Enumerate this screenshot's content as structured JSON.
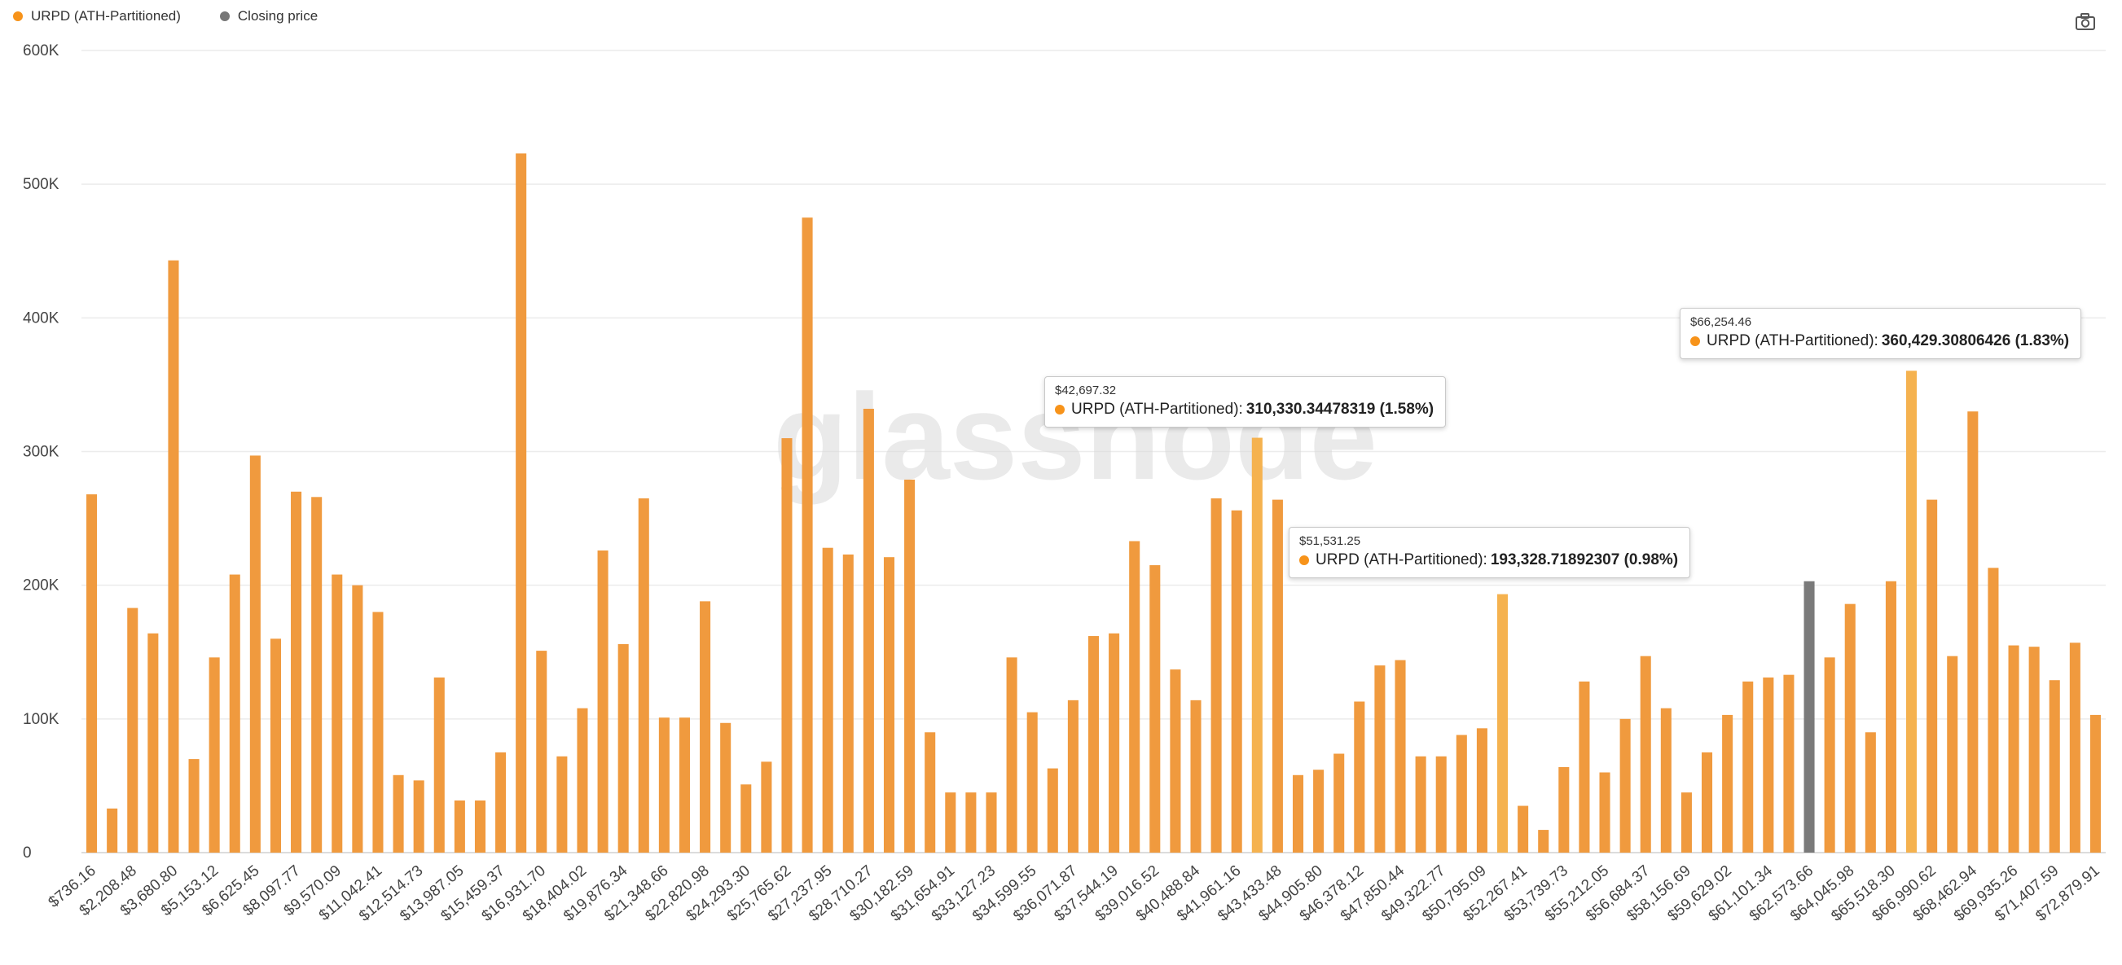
{
  "toolbar": {
    "camera_icon": "camera-icon"
  },
  "legend": [
    {
      "label": "URPD (ATH-Partitioned)",
      "color": "#F7931A"
    },
    {
      "label": "Closing price",
      "color": "#777777"
    }
  ],
  "watermark": "glassnode",
  "colors": {
    "bar": "#F09A3E",
    "highlight": "#F5B24F",
    "closing": "#7A7A7A",
    "grid": "#ececec",
    "text": "#444444"
  },
  "chart_data": {
    "type": "bar",
    "ylim": [
      0,
      600000
    ],
    "y_ticks": [
      {
        "value": 0,
        "label": "0"
      },
      {
        "value": 100000,
        "label": "100K"
      },
      {
        "value": 200000,
        "label": "200K"
      },
      {
        "value": 300000,
        "label": "300K"
      },
      {
        "value": 400000,
        "label": "400K"
      },
      {
        "value": 500000,
        "label": "500K"
      },
      {
        "value": 600000,
        "label": "600K"
      }
    ],
    "x_tick_labels": [
      "$736.16",
      "$2,208.48",
      "$3,680.80",
      "$5,153.12",
      "$6,625.45",
      "$8,097.77",
      "$9,570.09",
      "$11,042.41",
      "$12,514.73",
      "$13,987.05",
      "$15,459.37",
      "$16,931.70",
      "$18,404.02",
      "$19,876.34",
      "$21,348.66",
      "$22,820.98",
      "$24,293.30",
      "$25,765.62",
      "$27,237.95",
      "$28,710.27",
      "$30,182.59",
      "$31,654.91",
      "$33,127.23",
      "$34,599.55",
      "$36,071.87",
      "$37,544.19",
      "$39,016.52",
      "$40,488.84",
      "$41,961.16",
      "$43,433.48",
      "$44,905.80",
      "$46,378.12",
      "$47,850.44",
      "$49,322.77",
      "$50,795.09",
      "$52,267.41",
      "$53,739.73",
      "$55,212.05",
      "$56,684.37",
      "$58,156.69",
      "$59,629.02",
      "$61,101.34",
      "$62,573.66",
      "$64,045.98",
      "$65,518.30",
      "$66,990.62",
      "$68,462.94",
      "$69,935.26",
      "$71,407.59",
      "$72,879.91"
    ],
    "series": [
      {
        "name": "URPD (ATH-Partitioned)",
        "values": [
          268000,
          33000,
          183000,
          164000,
          443000,
          70000,
          146000,
          208000,
          297000,
          160000,
          270000,
          266000,
          208000,
          200000,
          180000,
          58000,
          54000,
          131000,
          39000,
          39000,
          75000,
          523000,
          151000,
          72000,
          108000,
          226000,
          156000,
          265000,
          101000,
          101000,
          188000,
          97000,
          51000,
          68000,
          310000,
          475000,
          228000,
          223000,
          332000,
          221000,
          279000,
          90000,
          45000,
          45000,
          45000,
          146000,
          105000,
          63000,
          114000,
          162000,
          164000,
          233000,
          215000,
          137000,
          114000,
          265000,
          256000,
          310330.34478319,
          264000,
          58000,
          62000,
          74000,
          113000,
          140000,
          144000,
          72000,
          72000,
          88000,
          93000,
          193328.71892307,
          35000,
          17000,
          64000,
          128000,
          60000,
          100000,
          147000,
          108000,
          45000,
          75000,
          103000,
          128000,
          131000,
          133000,
          203000,
          146000,
          186000,
          90000,
          203000,
          360429.30806426,
          264000,
          147000,
          330000,
          213000,
          155000,
          154000,
          129000,
          157000,
          103000
        ]
      }
    ],
    "closing_price_index": 84,
    "highlight_indices": [
      57,
      69,
      89
    ]
  },
  "tooltips": [
    {
      "x": "$42,697.32",
      "series": "URPD (ATH-Partitioned)",
      "value": "310,330.34478319 (1.58%)"
    },
    {
      "x": "$51,531.25",
      "series": "URPD (ATH-Partitioned)",
      "value": "193,328.71892307 (0.98%)"
    },
    {
      "x": "$66,254.46",
      "series": "URPD (ATH-Partitioned)",
      "value": "360,429.30806426 (1.83%)"
    }
  ]
}
